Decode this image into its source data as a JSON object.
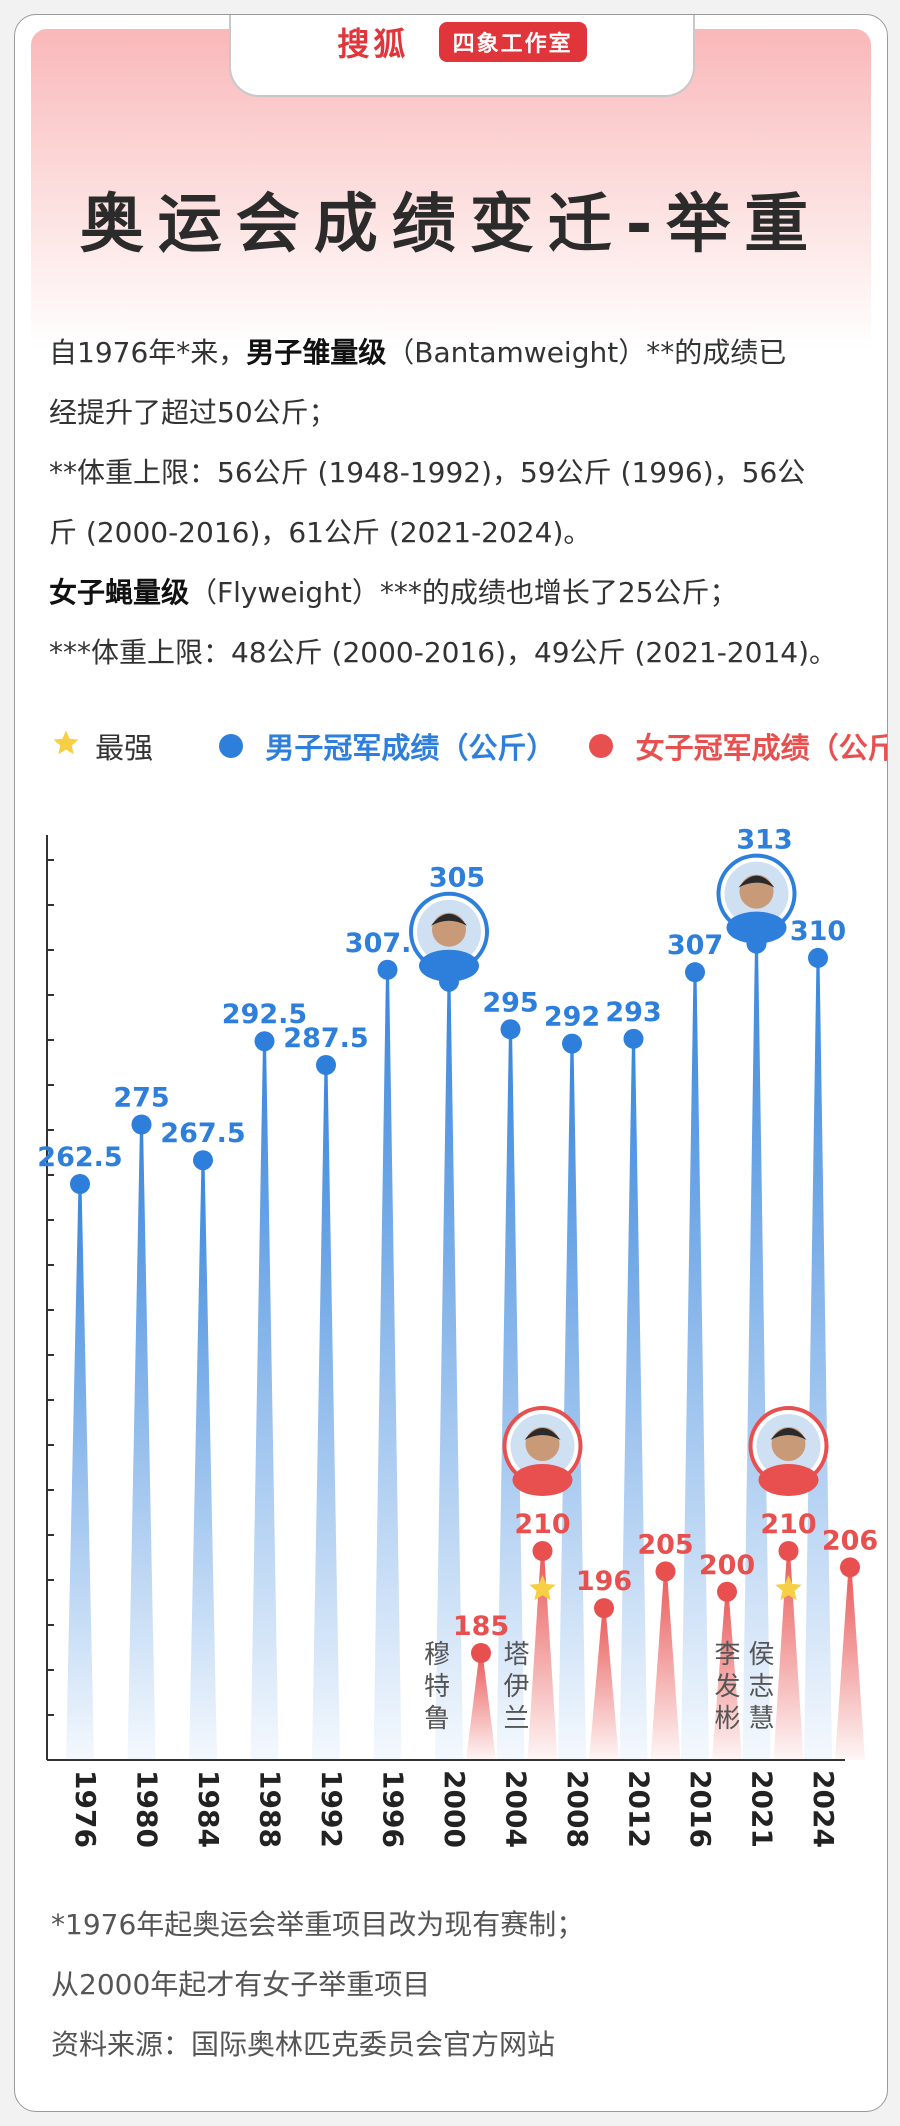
{
  "header": {
    "brand": "搜狐",
    "studio": "四象工作室",
    "title": "奥运会成绩变迁-举重"
  },
  "intro": {
    "l1a": "自1976年*来，",
    "l1b": "男子雏量级",
    "l1c": "（Bantamweight）**的成绩已",
    "l2": "经提升了超过50公斤；",
    "l3": "**体重上限：56公斤 (1948-1992)，59公斤 (1996)，56公",
    "l4": "斤 (2000-2016)，61公斤 (2021-2024)。",
    "l5a": "女子蝇量级",
    "l5b": "（Flyweight）***的成绩也增长了25公斤；",
    "l6": "***体重上限：48公斤 (2000-2016)，49公斤 (2021-2014)。"
  },
  "legend": {
    "best": "最强",
    "men": "男子冠军成绩（公斤）",
    "women": "女子冠军成绩（公斤）"
  },
  "colors": {
    "men": "#2d7fdb",
    "women": "#e8504f",
    "star": "#f6cf45",
    "axis": "#333333"
  },
  "chart_data": {
    "type": "bar",
    "title": "",
    "xlabel": "",
    "ylabel": "",
    "categories": [
      "1976",
      "1980",
      "1984",
      "1988",
      "1992",
      "1996",
      "2000",
      "2004",
      "2008",
      "2012",
      "2016",
      "2021",
      "2024"
    ],
    "series": [
      {
        "name": "男子冠军成绩（公斤）",
        "values": [
          262.5,
          275,
          267.5,
          292.5,
          287.5,
          307.5,
          305,
          295,
          292,
          293,
          307,
          313,
          310
        ]
      },
      {
        "name": "女子冠军成绩（公斤）",
        "values": [
          null,
          null,
          null,
          null,
          null,
          null,
          185,
          210,
          196,
          205,
          200,
          210,
          206
        ]
      }
    ],
    "men_labels": [
      "262.5",
      "275",
      "267.5",
      "292.5",
      "287.5",
      "307.5",
      "305",
      "295",
      "292",
      "293",
      "307",
      "313",
      "310"
    ],
    "women_labels": [
      "",
      "",
      "",
      "",
      "",
      "",
      "185",
      "210",
      "196",
      "205",
      "200",
      "210",
      "206"
    ],
    "best": [
      {
        "series": "men",
        "category": "2021"
      },
      {
        "series": "women",
        "category": "2004"
      },
      {
        "series": "women",
        "category": "2021"
      }
    ],
    "athletes": [
      {
        "series": "men",
        "category": "2000",
        "icon": "athlete-portrait-icon"
      },
      {
        "series": "men",
        "category": "2021",
        "icon": "athlete-portrait-icon"
      },
      {
        "series": "women",
        "category": "2004",
        "icon": "athlete-portrait-icon"
      },
      {
        "series": "women",
        "category": "2021",
        "icon": "athlete-portrait-icon"
      }
    ],
    "athlete_names": [
      {
        "category": "2000",
        "name": "穆特鲁"
      },
      {
        "category": "2004",
        "name": "塔伊兰"
      },
      {
        "category": "2021",
        "name": "李发彬"
      },
      {
        "category": "2021",
        "name": "侯志慧"
      }
    ],
    "ylim": [
      185,
      315
    ],
    "grid": false
  },
  "notes": {
    "n1": "*1976年起奥运会举重项目改为现有赛制；",
    "n2": "从2000年起才有女子举重项目",
    "n3": "资料来源：国际奥林匹克委员会官方网站"
  }
}
